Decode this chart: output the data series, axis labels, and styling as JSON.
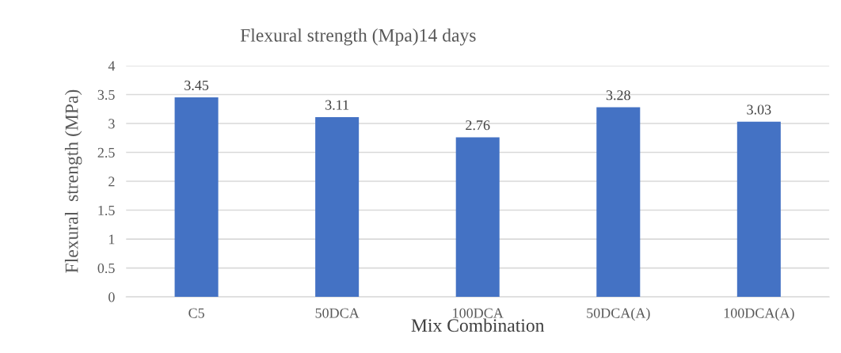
{
  "chart_data": {
    "type": "bar",
    "title": "Flexural strength (Mpa)14 days",
    "xlabel": "Mix Combination",
    "ylabel": "Flexural  strength (MPa)",
    "categories": [
      "C5",
      "50DCA",
      "100DCA",
      "50DCA(A)",
      "100DCA(A)"
    ],
    "values": [
      3.45,
      3.11,
      2.76,
      3.28,
      3.03
    ],
    "color": "#4472c4",
    "ylim": [
      0,
      4
    ],
    "yticks": [
      0,
      0.5,
      1,
      1.5,
      2,
      2.5,
      3,
      3.5,
      4
    ],
    "grid": "y",
    "data_labels": true
  }
}
